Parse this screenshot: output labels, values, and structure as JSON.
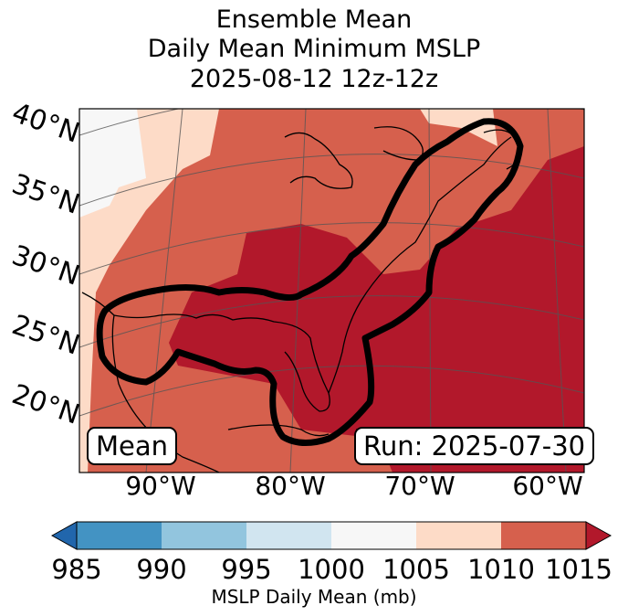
{
  "title": {
    "line1": "Ensemble Mean",
    "line2": "Daily Mean Minimum MSLP",
    "line3": "2025-08-12 12z-12z"
  },
  "map": {
    "region": "Eastern United States and Gulf of Mexico",
    "lat_labels": [
      "40°N",
      "35°N",
      "30°N",
      "25°N",
      "20°N"
    ],
    "lon_labels": [
      "90°W",
      "80°W",
      "70°W",
      "60°W"
    ],
    "mean_box": "Mean",
    "run_box": "Run: 2025-07-30"
  },
  "colorbar": {
    "ticks": [
      "985",
      "990",
      "995",
      "1000",
      "1005",
      "1010",
      "1015"
    ],
    "label": "MSLP Daily Mean (mb)",
    "colors": [
      "#2166ac",
      "#4393c3",
      "#92c5de",
      "#d1e5f0",
      "#f7f7f7",
      "#fddbc7",
      "#d6604d",
      "#b2182b"
    ]
  },
  "chart_data": {
    "type": "heatmap",
    "title": "Ensemble Mean Daily Mean Minimum MSLP 2025-08-12 12z-12z",
    "variable": "MSLP Daily Mean (mb)",
    "levels": [
      985,
      990,
      995,
      1000,
      1005,
      1010,
      1015
    ],
    "extend": "both",
    "dominant_ranges": [
      {
        "range": "1000-1005",
        "area": "northwest corner (Great Plains)"
      },
      {
        "range": "1005-1010",
        "area": "western edge and far northeast (Maine)"
      },
      {
        "range": "1010-1015",
        "area": "central US interior and Gulf coast states"
      },
      {
        "range": ">1015",
        "area": "southeastern US, Gulf of Mexico and western Atlantic"
      }
    ],
    "contour": "thick black outline enclosing Gulf coast, Florida and US East Coast",
    "run": "2025-07-30"
  }
}
